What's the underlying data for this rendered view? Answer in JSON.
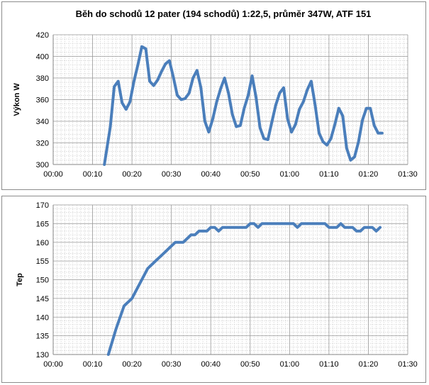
{
  "chart_data": [
    {
      "type": "line",
      "title": "Běh do schodů 12 pater (194 schodů) 1:22,5, průměr 347W, ATF 151",
      "xlabel": "",
      "ylabel": "Výkon W",
      "xlim": [
        0,
        90
      ],
      "ylim": [
        300,
        420
      ],
      "x_ticks": [
        "00:00",
        "00:10",
        "00:20",
        "00:30",
        "00:40",
        "00:50",
        "01:00",
        "01:10",
        "01:20",
        "01:30"
      ],
      "y_ticks": [
        "300",
        "320",
        "340",
        "360",
        "380",
        "400",
        "420"
      ],
      "color": "#4a7ebb",
      "grid": true,
      "series": [
        {
          "name": "",
          "x": [
            13,
            14.5,
            15.5,
            16.5,
            17.5,
            18.5,
            19.5,
            20.5,
            21.5,
            22.5,
            23.5,
            24.5,
            25.5,
            26.5,
            27.5,
            28.5,
            29.5,
            30.5,
            31.5,
            32.5,
            33.5,
            34.5,
            35.5,
            36.5,
            37.5,
            38.5,
            39.5,
            40.5,
            41.5,
            42.5,
            43.5,
            44.5,
            45.5,
            46.5,
            47.5,
            48.5,
            49.5,
            50.5,
            51.5,
            52.5,
            53.5,
            54.5,
            55.5,
            56.5,
            57.5,
            58.5,
            59.5,
            60.5,
            61.5,
            62.5,
            63.5,
            64.5,
            65.5,
            66.5,
            67.5,
            68.5,
            69.5,
            70.5,
            71.5,
            72.5,
            73.5,
            74.5,
            75.5,
            76.5,
            77.5,
            78.5,
            79.5,
            80.5,
            81.5,
            82.5,
            83.5
          ],
          "y": [
            300,
            335,
            372,
            377,
            357,
            351,
            358,
            377,
            392,
            409,
            407,
            377,
            373,
            378,
            386,
            393,
            396,
            381,
            364,
            360,
            361,
            366,
            380,
            387,
            371,
            340,
            330,
            342,
            358,
            370,
            380,
            366,
            346,
            335,
            336,
            352,
            364,
            382,
            362,
            334,
            324,
            323,
            339,
            355,
            366,
            371,
            342,
            330,
            337,
            351,
            358,
            369,
            377,
            355,
            329,
            321,
            318,
            324,
            337,
            352,
            345,
            315,
            304,
            307,
            321,
            341,
            352,
            352,
            336,
            329,
            329
          ]
        }
      ]
    },
    {
      "type": "line",
      "title": "",
      "xlabel": "",
      "ylabel": "Tep",
      "xlim": [
        0,
        90
      ],
      "ylim": [
        130,
        170
      ],
      "x_ticks": [
        "00:00",
        "00:10",
        "00:20",
        "00:30",
        "00:40",
        "00:50",
        "01:00",
        "01:10",
        "01:20",
        "01:30"
      ],
      "y_ticks": [
        "130",
        "135",
        "140",
        "145",
        "150",
        "155",
        "160",
        "165",
        "170"
      ],
      "color": "#4a7ebb",
      "grid": true,
      "series": [
        {
          "name": "",
          "x": [
            14,
            16,
            18,
            20,
            22,
            24,
            26,
            28,
            30,
            31,
            33,
            34,
            35,
            36,
            37,
            38,
            39,
            40,
            41,
            42,
            43,
            44,
            45,
            46,
            47,
            48,
            49,
            50,
            51,
            52,
            53,
            54,
            55,
            56,
            57,
            58,
            59,
            60,
            61,
            62,
            63,
            64,
            65,
            66,
            67,
            68,
            69,
            70,
            71,
            72,
            73,
            74,
            75,
            76,
            77,
            78,
            79,
            80,
            81,
            82,
            83
          ],
          "y": [
            130,
            137,
            143,
            145,
            149,
            153,
            155,
            157,
            159,
            160,
            160,
            161,
            162,
            162,
            163,
            163,
            163,
            164,
            164,
            163,
            164,
            164,
            164,
            164,
            164,
            164,
            164,
            165,
            165,
            164,
            165,
            165,
            165,
            165,
            165,
            165,
            165,
            165,
            165,
            164,
            165,
            165,
            165,
            165,
            165,
            165,
            165,
            164,
            164,
            164,
            165,
            164,
            164,
            164,
            163,
            163,
            164,
            164,
            164,
            163,
            164
          ]
        }
      ]
    }
  ]
}
